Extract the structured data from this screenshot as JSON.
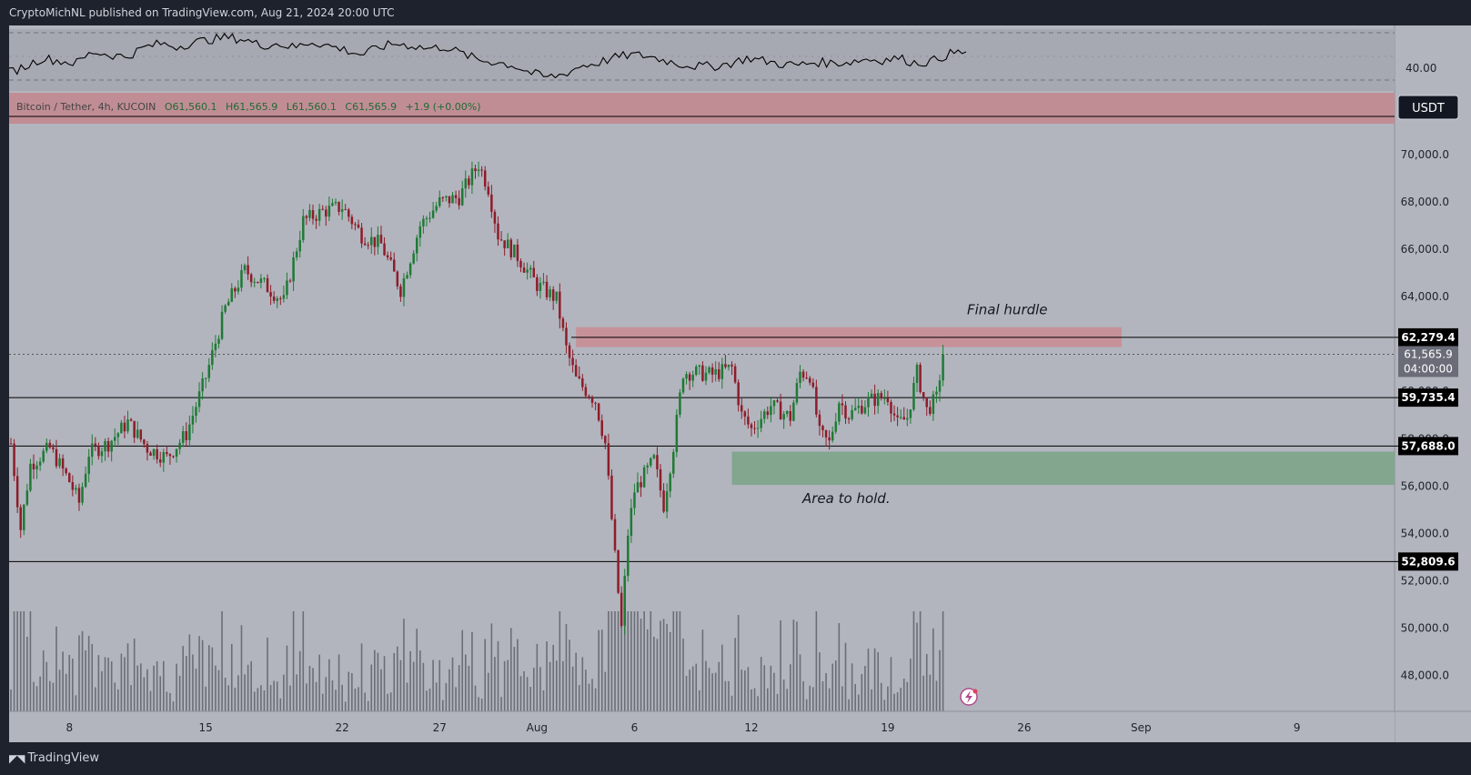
{
  "header": {
    "publisher_text": "CryptoMichNL published on TradingView.com, Aug 21, 2024 20:00 UTC"
  },
  "footer": {
    "logo_text": "TradingView"
  },
  "colors": {
    "background": "#b2b5be",
    "up": "#1f7a35",
    "down": "#8e1c2a",
    "resistance_zone": "#c98d96",
    "support_zone": "#7fa58b",
    "rsi_line": "#000000"
  },
  "chart_data": {
    "type": "candlestick",
    "symbol_info": {
      "name": "Bitcoin / Tether, 4h, KUCOIN",
      "open": "O61,560.1",
      "high": "H61,565.9",
      "low": "L61,560.1",
      "close": "C61,565.9",
      "change": "+1.9 (+0.00%)"
    },
    "currency_label": "USDT",
    "ylim": [
      46800,
      71500
    ],
    "y_ticks": [
      "70,000.0",
      "68,000.0",
      "66,000.0",
      "64,000.0",
      "62,000.0",
      "60,000.0",
      "58,000.0",
      "56,000.0",
      "54,000.0",
      "52,000.0",
      "50,000.0",
      "48,000.0"
    ],
    "x_ticks": [
      "8",
      "15",
      "22",
      "27",
      "Aug",
      "6",
      "12",
      "19",
      "26",
      "Sep",
      "9"
    ],
    "price_path": [
      {
        "date": "2024-07-05",
        "price": 57800
      },
      {
        "date": "2024-07-05 12:00",
        "price": 54200
      },
      {
        "date": "2024-07-06",
        "price": 56900
      },
      {
        "date": "2024-07-07",
        "price": 57600
      },
      {
        "date": "2024-07-08",
        "price": 56200
      },
      {
        "date": "2024-07-08 12:00",
        "price": 55300
      },
      {
        "date": "2024-07-09",
        "price": 57400
      },
      {
        "date": "2024-07-10",
        "price": 57800
      },
      {
        "date": "2024-07-11",
        "price": 58700
      },
      {
        "date": "2024-07-12",
        "price": 57600
      },
      {
        "date": "2024-07-13",
        "price": 57200
      },
      {
        "date": "2024-07-14",
        "price": 58200
      },
      {
        "date": "2024-07-15",
        "price": 60600
      },
      {
        "date": "2024-07-16",
        "price": 63500
      },
      {
        "date": "2024-07-17",
        "price": 65100
      },
      {
        "date": "2024-07-18",
        "price": 64500
      },
      {
        "date": "2024-07-19",
        "price": 63800
      },
      {
        "date": "2024-07-20",
        "price": 67200
      },
      {
        "date": "2024-07-21",
        "price": 67600
      },
      {
        "date": "2024-07-22",
        "price": 67800
      },
      {
        "date": "2024-07-23",
        "price": 66600
      },
      {
        "date": "2024-07-24",
        "price": 66200
      },
      {
        "date": "2024-07-25",
        "price": 64300
      },
      {
        "date": "2024-07-26",
        "price": 67000
      },
      {
        "date": "2024-07-27",
        "price": 68000
      },
      {
        "date": "2024-07-28",
        "price": 68200
      },
      {
        "date": "2024-07-29",
        "price": 69600
      },
      {
        "date": "2024-07-29 12:00",
        "price": 68600
      },
      {
        "date": "2024-07-30",
        "price": 66600
      },
      {
        "date": "2024-07-31",
        "price": 65700
      },
      {
        "date": "2024-08-01",
        "price": 64500
      },
      {
        "date": "2024-08-02",
        "price": 63900
      },
      {
        "date": "2024-08-02 12:00",
        "price": 61800
      },
      {
        "date": "2024-08-03",
        "price": 60500
      },
      {
        "date": "2024-08-04",
        "price": 59600
      },
      {
        "date": "2024-08-04 12:00",
        "price": 57800
      },
      {
        "date": "2024-08-05",
        "price": 53000
      },
      {
        "date": "2024-08-05 08:00",
        "price": 50000
      },
      {
        "date": "2024-08-05 16:00",
        "price": 54000
      },
      {
        "date": "2024-08-06",
        "price": 55800
      },
      {
        "date": "2024-08-07",
        "price": 57100
      },
      {
        "date": "2024-08-07 12:00",
        "price": 55200
      },
      {
        "date": "2024-08-08",
        "price": 57700
      },
      {
        "date": "2024-08-08 12:00",
        "price": 60800
      },
      {
        "date": "2024-08-09",
        "price": 60800
      },
      {
        "date": "2024-08-10",
        "price": 60700
      },
      {
        "date": "2024-08-11",
        "price": 61000
      },
      {
        "date": "2024-08-11 12:00",
        "price": 59000
      },
      {
        "date": "2024-08-12",
        "price": 58400
      },
      {
        "date": "2024-08-13",
        "price": 59400
      },
      {
        "date": "2024-08-14",
        "price": 58900
      },
      {
        "date": "2024-08-14 12:00",
        "price": 60800
      },
      {
        "date": "2024-08-15",
        "price": 60700
      },
      {
        "date": "2024-08-15 12:00",
        "price": 58200
      },
      {
        "date": "2024-08-16",
        "price": 57800
      },
      {
        "date": "2024-08-16 12:00",
        "price": 59600
      },
      {
        "date": "2024-08-17",
        "price": 59000
      },
      {
        "date": "2024-08-18",
        "price": 59600
      },
      {
        "date": "2024-08-19",
        "price": 59800
      },
      {
        "date": "2024-08-19 12:00",
        "price": 58600
      },
      {
        "date": "2024-08-20",
        "price": 58900
      },
      {
        "date": "2024-08-20 12:00",
        "price": 60800
      },
      {
        "date": "2024-08-21",
        "price": 59200
      },
      {
        "date": "2024-08-21 12:00",
        "price": 59700
      },
      {
        "date": "2024-08-21 20:00",
        "price": 61565.9
      }
    ],
    "horizontal_levels": [
      {
        "price": 62279.4,
        "label": "62,279.4"
      },
      {
        "price": 59735.4,
        "label": "59,735.4"
      },
      {
        "price": 57688.0,
        "label": "57,688.0"
      },
      {
        "price": 52809.6,
        "label": "52,809.6"
      }
    ],
    "current_price": {
      "label": "61,565.9",
      "countdown": "04:00:00"
    },
    "zones": [
      {
        "name": "resistance",
        "start": "2024-08-03",
        "end": "2024-08-31",
        "low": 61870,
        "high": 62710,
        "annotation": "Final hurdle"
      },
      {
        "name": "support",
        "start": "2024-08-11",
        "end": "2024-09-11",
        "low": 56050,
        "high": 57450,
        "annotation": "Area to hold."
      }
    ],
    "rsi": {
      "label_value": "40.00",
      "values_shape": [
        38,
        44,
        52,
        49,
        47,
        58,
        55,
        53,
        62,
        66,
        63,
        67,
        70,
        72,
        70,
        64,
        66,
        62,
        68,
        64,
        60,
        55,
        62,
        66,
        64,
        61,
        63,
        56,
        50,
        48,
        45,
        38,
        33,
        36,
        44,
        47,
        52,
        55,
        54,
        50,
        46,
        44,
        44,
        47,
        52,
        49,
        46,
        45,
        48,
        47,
        48,
        51,
        50,
        52,
        47,
        49,
        56,
        58
      ]
    }
  }
}
